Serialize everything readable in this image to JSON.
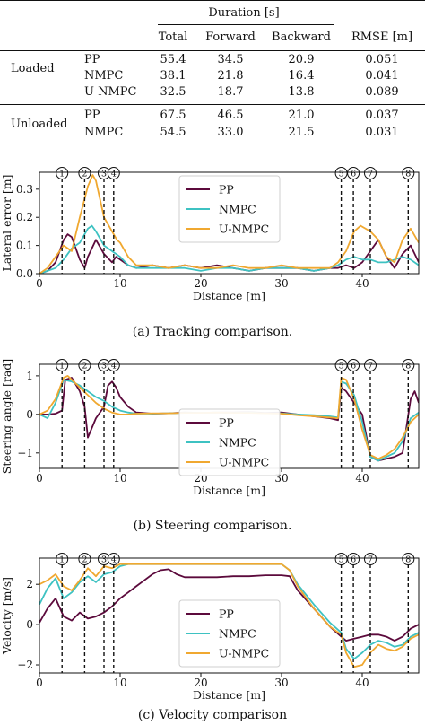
{
  "table": {
    "header_group": "Duration [s]",
    "columns": [
      "Total",
      "Forward",
      "Backward",
      "RMSE [m]"
    ],
    "groups": [
      {
        "label": "Loaded",
        "rows": [
          {
            "method": "PP",
            "values": [
              "55.4",
              "34.5",
              "20.9",
              "0.051"
            ]
          },
          {
            "method": "NMPC",
            "values": [
              "38.1",
              "21.8",
              "16.4",
              "0.041"
            ]
          },
          {
            "method": "U-NMPC",
            "values": [
              "32.5",
              "18.7",
              "13.8",
              "0.089"
            ]
          }
        ]
      },
      {
        "label": "Unloaded",
        "rows": [
          {
            "method": "PP",
            "values": [
              "67.5",
              "46.5",
              "21.0",
              "0.037"
            ]
          },
          {
            "method": "NMPC",
            "values": [
              "54.5",
              "33.0",
              "21.5",
              "0.031"
            ]
          }
        ]
      }
    ]
  },
  "colors": {
    "PP": "#5c0a3c",
    "NMPC": "#3ec2c2",
    "U-NMPC": "#f0a830"
  },
  "chart_data": [
    {
      "type": "line",
      "xlabel": "Distance [m]",
      "ylabel": "Lateral error [m]",
      "xlim": [
        0,
        47
      ],
      "ylim": [
        0,
        0.36
      ],
      "xticks": [
        0,
        10,
        20,
        30,
        40
      ],
      "yticks": [
        0,
        0.1,
        0.2,
        0.3
      ],
      "ytick_labels": [
        "0.0",
        "0.1",
        "0.2",
        "0.3"
      ],
      "legend": "top-center",
      "markers": [
        {
          "label": "1",
          "x": 2.8
        },
        {
          "label": "2",
          "x": 5.6
        },
        {
          "label": "3",
          "x": 8.0
        },
        {
          "label": "4",
          "x": 9.2
        },
        {
          "label": "5",
          "x": 37.4
        },
        {
          "label": "6",
          "x": 38.9
        },
        {
          "label": "7",
          "x": 41.0
        },
        {
          "label": "8",
          "x": 45.7
        }
      ],
      "caption": "(a) Tracking comparison.",
      "series": [
        {
          "name": "PP",
          "x": [
            0,
            1,
            2,
            3,
            3.5,
            4,
            5,
            5.6,
            6,
            7,
            8,
            9,
            9.5,
            10,
            11,
            12,
            14,
            16,
            18,
            20,
            22,
            24,
            26,
            28,
            30,
            32,
            34,
            36,
            37,
            38,
            39,
            40,
            41,
            42,
            43,
            44,
            45,
            46,
            47
          ],
          "y": [
            0.0,
            0.01,
            0.04,
            0.12,
            0.14,
            0.13,
            0.05,
            0.02,
            0.06,
            0.12,
            0.07,
            0.04,
            0.06,
            0.05,
            0.03,
            0.02,
            0.03,
            0.02,
            0.03,
            0.02,
            0.03,
            0.02,
            0.01,
            0.02,
            0.02,
            0.02,
            0.01,
            0.02,
            0.02,
            0.03,
            0.02,
            0.04,
            0.08,
            0.12,
            0.06,
            0.02,
            0.07,
            0.1,
            0.04
          ]
        },
        {
          "name": "NMPC",
          "x": [
            0,
            1,
            2,
            3,
            4,
            5,
            6,
            6.5,
            7,
            8,
            9,
            10,
            11,
            12,
            14,
            16,
            18,
            20,
            22,
            24,
            26,
            28,
            30,
            32,
            34,
            36,
            37,
            38,
            39,
            40,
            41,
            42,
            43,
            44,
            45,
            46,
            47
          ],
          "y": [
            0.0,
            0.01,
            0.02,
            0.05,
            0.09,
            0.11,
            0.16,
            0.17,
            0.15,
            0.1,
            0.08,
            0.06,
            0.03,
            0.02,
            0.02,
            0.02,
            0.02,
            0.01,
            0.02,
            0.02,
            0.01,
            0.02,
            0.02,
            0.02,
            0.01,
            0.02,
            0.03,
            0.05,
            0.06,
            0.05,
            0.05,
            0.04,
            0.04,
            0.05,
            0.06,
            0.05,
            0.03
          ]
        },
        {
          "name": "U-NMPC",
          "x": [
            0,
            1,
            2,
            3,
            4,
            5,
            6,
            6.6,
            7,
            8,
            9,
            9.6,
            10,
            11,
            12,
            14,
            16,
            18,
            20,
            22,
            24,
            26,
            28,
            30,
            32,
            34,
            36,
            37,
            38,
            39,
            39.8,
            41,
            42,
            43,
            44,
            45,
            46,
            47
          ],
          "y": [
            0.0,
            0.02,
            0.06,
            0.1,
            0.08,
            0.2,
            0.31,
            0.35,
            0.33,
            0.2,
            0.15,
            0.12,
            0.11,
            0.06,
            0.03,
            0.03,
            0.02,
            0.03,
            0.02,
            0.02,
            0.03,
            0.02,
            0.02,
            0.03,
            0.02,
            0.02,
            0.02,
            0.04,
            0.08,
            0.15,
            0.17,
            0.15,
            0.12,
            0.06,
            0.04,
            0.12,
            0.16,
            0.11
          ]
        }
      ]
    },
    {
      "type": "line",
      "xlabel": "Distance [m]",
      "ylabel": "Steering angle [rad]",
      "xlim": [
        0,
        47
      ],
      "ylim": [
        -1.4,
        1.3
      ],
      "xticks": [
        0,
        10,
        20,
        30,
        40
      ],
      "yticks": [
        -1,
        0,
        1
      ],
      "ytick_labels": [
        "−1",
        "0",
        "1"
      ],
      "legend": "bottom-center",
      "markers": [
        {
          "label": "1",
          "x": 2.8
        },
        {
          "label": "2",
          "x": 5.6
        },
        {
          "label": "3",
          "x": 8.0
        },
        {
          "label": "4",
          "x": 9.2
        },
        {
          "label": "5",
          "x": 37.4
        },
        {
          "label": "6",
          "x": 38.9
        },
        {
          "label": "7",
          "x": 41.0
        },
        {
          "label": "8",
          "x": 45.7
        }
      ],
      "caption": "(b) Steering comparison.",
      "series": [
        {
          "name": "PP",
          "x": [
            0,
            1,
            2,
            2.8,
            3.2,
            4,
            5,
            5.6,
            6,
            7,
            8,
            8.5,
            9,
            9.5,
            10,
            11,
            12,
            14,
            16,
            18,
            20,
            22,
            24,
            26,
            28,
            30,
            32,
            34,
            36,
            37,
            37.4,
            38,
            39,
            40,
            41,
            42,
            43,
            44,
            45,
            46,
            46.5,
            47
          ],
          "y": [
            0.0,
            0.0,
            0.02,
            0.1,
            0.9,
            0.95,
            0.6,
            0.2,
            -0.6,
            -0.1,
            0.2,
            0.75,
            0.85,
            0.7,
            0.45,
            0.2,
            0.05,
            0.02,
            0.03,
            0.05,
            0.04,
            0.05,
            0.05,
            0.06,
            0.04,
            0.05,
            0.0,
            -0.05,
            -0.1,
            -0.15,
            0.7,
            0.6,
            0.3,
            0.0,
            -1.1,
            -1.2,
            -1.15,
            -1.1,
            -1.0,
            0.4,
            0.6,
            0.3
          ]
        },
        {
          "name": "NMPC",
          "x": [
            0,
            1,
            2,
            3,
            4,
            5,
            6,
            7,
            8,
            9,
            10,
            11,
            12,
            14,
            16,
            18,
            20,
            22,
            24,
            26,
            28,
            30,
            32,
            34,
            36,
            37,
            37.4,
            38,
            39,
            40,
            41,
            42,
            43,
            44,
            45,
            46,
            47
          ],
          "y": [
            0.0,
            -0.1,
            0.3,
            0.9,
            0.85,
            0.75,
            0.6,
            0.45,
            0.35,
            0.2,
            0.1,
            0.05,
            0.02,
            0.02,
            0.03,
            0.04,
            0.04,
            0.05,
            0.04,
            0.05,
            0.03,
            0.03,
            0.0,
            -0.02,
            -0.05,
            -0.08,
            0.85,
            0.8,
            0.5,
            -0.2,
            -1.1,
            -1.2,
            -1.1,
            -1.0,
            -0.7,
            -0.1,
            0.05
          ]
        },
        {
          "name": "U-NMPC",
          "x": [
            0,
            1,
            2,
            3,
            3.5,
            4,
            5,
            6,
            7,
            8,
            9,
            10,
            11,
            12,
            14,
            16,
            18,
            20,
            22,
            24,
            26,
            28,
            30,
            32,
            34,
            36,
            37,
            37.4,
            38,
            39,
            40,
            41,
            42,
            43,
            44,
            45,
            46,
            47
          ],
          "y": [
            0.0,
            0.1,
            0.4,
            0.95,
            1.0,
            0.9,
            0.7,
            0.5,
            0.3,
            0.15,
            0.05,
            0.0,
            0.0,
            0.02,
            0.03,
            0.03,
            0.04,
            0.04,
            0.05,
            0.04,
            0.04,
            0.03,
            0.02,
            -0.02,
            -0.05,
            -0.08,
            -0.1,
            0.95,
            0.9,
            0.4,
            -0.4,
            -1.05,
            -1.15,
            -1.05,
            -0.9,
            -0.6,
            -0.2,
            0.0
          ]
        }
      ]
    },
    {
      "type": "line",
      "xlabel": "Distance [m]",
      "ylabel": "Velocity [m/s]",
      "xlim": [
        0,
        47
      ],
      "ylim": [
        -2.4,
        3.3
      ],
      "xticks": [
        0,
        10,
        20,
        30,
        40
      ],
      "yticks": [
        -2,
        0,
        2
      ],
      "ytick_labels": [
        "−2",
        "0",
        "2"
      ],
      "legend": "bottom-center",
      "markers": [
        {
          "label": "1",
          "x": 2.8
        },
        {
          "label": "2",
          "x": 5.6
        },
        {
          "label": "3",
          "x": 8.0
        },
        {
          "label": "4",
          "x": 9.2
        },
        {
          "label": "5",
          "x": 37.4
        },
        {
          "label": "6",
          "x": 38.9
        },
        {
          "label": "7",
          "x": 41.0
        },
        {
          "label": "8",
          "x": 45.7
        }
      ],
      "caption": "(c) Velocity comparison",
      "series": [
        {
          "name": "PP",
          "x": [
            0,
            1,
            2,
            3,
            4,
            5,
            6,
            7,
            8,
            9,
            10,
            11,
            12,
            13,
            14,
            15,
            16,
            17,
            18,
            20,
            22,
            24,
            26,
            28,
            30,
            31,
            32,
            34,
            36,
            37.4,
            38,
            39,
            40,
            41,
            42,
            43,
            44,
            45,
            46,
            47
          ],
          "y": [
            0.1,
            0.8,
            1.3,
            0.4,
            0.2,
            0.6,
            0.3,
            0.4,
            0.6,
            0.9,
            1.3,
            1.6,
            1.9,
            2.2,
            2.5,
            2.7,
            2.75,
            2.5,
            2.35,
            2.35,
            2.35,
            2.4,
            2.4,
            2.45,
            2.45,
            2.4,
            1.7,
            0.8,
            -0.1,
            -0.6,
            -0.8,
            -0.7,
            -0.6,
            -0.5,
            -0.5,
            -0.6,
            -0.8,
            -0.6,
            -0.2,
            0.0
          ]
        },
        {
          "name": "NMPC",
          "x": [
            0,
            1,
            2,
            3,
            4,
            5,
            6,
            7,
            8,
            9,
            10,
            11,
            12,
            14,
            16,
            18,
            20,
            22,
            24,
            26,
            28,
            30,
            31,
            32,
            34,
            36,
            37.4,
            38,
            39,
            40,
            41,
            42,
            43,
            44,
            45,
            46,
            47
          ],
          "y": [
            1.0,
            1.8,
            2.3,
            1.3,
            1.6,
            2.1,
            2.4,
            2.1,
            2.5,
            2.6,
            2.9,
            3.0,
            3.0,
            3.0,
            3.0,
            3.0,
            3.0,
            3.0,
            3.0,
            3.0,
            3.0,
            3.0,
            2.7,
            2.0,
            1.0,
            0.1,
            -0.4,
            -1.2,
            -1.7,
            -1.4,
            -1.0,
            -0.8,
            -0.9,
            -1.1,
            -1.0,
            -0.6,
            -0.4
          ]
        },
        {
          "name": "U-NMPC",
          "x": [
            0,
            1,
            2,
            3,
            4,
            5,
            6,
            7,
            8,
            9,
            10,
            11,
            12,
            14,
            16,
            18,
            20,
            22,
            24,
            26,
            28,
            30,
            31,
            32,
            34,
            36,
            37.4,
            38,
            39,
            40,
            41,
            42,
            43,
            44,
            45,
            46,
            47
          ],
          "y": [
            2.0,
            2.2,
            2.5,
            1.9,
            1.7,
            2.2,
            2.8,
            2.4,
            2.9,
            2.8,
            3.0,
            3.0,
            3.0,
            3.0,
            3.0,
            3.0,
            3.0,
            3.0,
            3.0,
            3.0,
            3.0,
            3.0,
            2.7,
            1.9,
            0.8,
            -0.1,
            -0.5,
            -1.4,
            -2.1,
            -2.0,
            -1.4,
            -1.0,
            -1.2,
            -1.3,
            -1.1,
            -0.7,
            -0.5
          ]
        }
      ]
    }
  ]
}
